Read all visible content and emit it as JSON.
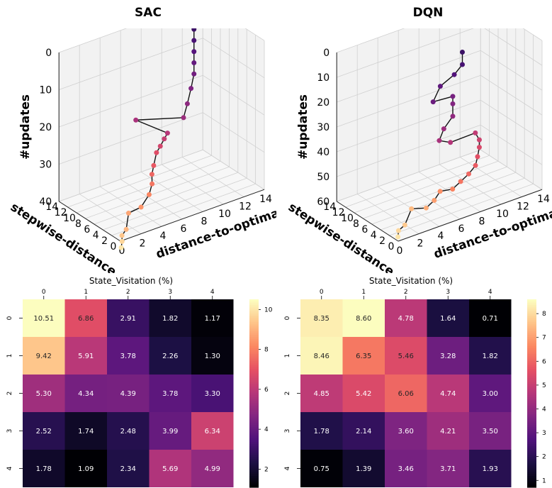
{
  "titles": {
    "left": "SAC",
    "right": "DQN"
  },
  "chart_data": [
    {
      "type": "scatter",
      "subtype": "3d-trajectory",
      "title": "SAC",
      "xlabel": "distance-to-optimal",
      "ylabel": "stepwise-distance",
      "zlabel": "#updates",
      "x_ticks": [
        "0",
        "2",
        "4",
        "6",
        "8",
        "10",
        "12",
        "14"
      ],
      "y_ticks": [
        "0",
        "2",
        "4",
        "6",
        "8",
        "10",
        "12",
        "14"
      ],
      "z_ticks": [
        "0",
        "10",
        "20",
        "30",
        "40"
      ],
      "z_inverted": true,
      "colormap": [
        "#fcfdbf",
        "#fc8961",
        "#b73779",
        "#51127c",
        "#000004"
      ]
    },
    {
      "type": "scatter",
      "subtype": "3d-trajectory",
      "title": "DQN",
      "xlabel": "distance-to-optimal",
      "ylabel": "stepwise-distance",
      "zlabel": "#updates",
      "x_ticks": [
        "0",
        "2",
        "4",
        "6",
        "8",
        "10",
        "12",
        "14"
      ],
      "y_ticks": [
        "0",
        "2",
        "4",
        "6",
        "8",
        "10",
        "12",
        "14"
      ],
      "z_ticks": [
        "0",
        "10",
        "20",
        "30",
        "40",
        "50",
        "60"
      ],
      "z_inverted": true,
      "colormap": [
        "#fcfdbf",
        "#fc8961",
        "#b73779",
        "#51127c",
        "#000004"
      ]
    },
    {
      "type": "heatmap",
      "title": "State_Visitation (%)",
      "x_categories": [
        "0",
        "1",
        "2",
        "3",
        "4"
      ],
      "y_categories": [
        "0",
        "1",
        "2",
        "3",
        "4"
      ],
      "values": [
        [
          10.51,
          6.86,
          2.91,
          1.82,
          1.17
        ],
        [
          9.42,
          5.91,
          3.78,
          2.26,
          1.3
        ],
        [
          5.3,
          4.34,
          4.39,
          3.78,
          3.3
        ],
        [
          2.52,
          1.74,
          2.48,
          3.99,
          6.34
        ],
        [
          1.78,
          1.09,
          2.34,
          5.69,
          4.99
        ]
      ],
      "colorbar_ticks": [
        "2",
        "4",
        "6",
        "8",
        "10"
      ],
      "colormap": "magma"
    },
    {
      "type": "heatmap",
      "title": "State_Visitation (%)",
      "x_categories": [
        "0",
        "1",
        "2",
        "3",
        "4"
      ],
      "y_categories": [
        "0",
        "1",
        "2",
        "3",
        "4"
      ],
      "values": [
        [
          8.35,
          8.6,
          4.78,
          1.64,
          0.71
        ],
        [
          8.46,
          6.35,
          5.46,
          3.28,
          1.82
        ],
        [
          4.85,
          5.42,
          6.06,
          4.74,
          3.0
        ],
        [
          1.78,
          2.14,
          3.6,
          4.21,
          3.5
        ],
        [
          0.75,
          1.39,
          3.46,
          3.71,
          1.93
        ]
      ],
      "colorbar_ticks": [
        "1",
        "2",
        "3",
        "4",
        "5",
        "6",
        "7",
        "8"
      ],
      "colormap": "magma"
    }
  ]
}
